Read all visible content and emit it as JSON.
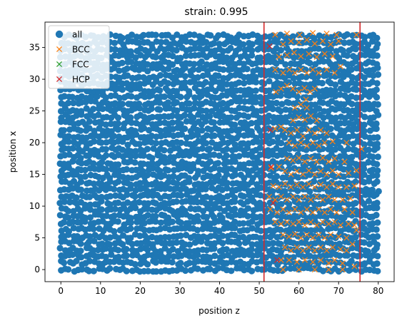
{
  "chart_data": {
    "type": "scatter",
    "title": "strain: 0.995",
    "xlabel": "position z",
    "ylabel": "position x",
    "xlim": [
      -4,
      84
    ],
    "ylim": [
      -1.9,
      39.0
    ],
    "xticks": [
      0,
      10,
      20,
      30,
      40,
      50,
      60,
      70,
      80
    ],
    "yticks": [
      0,
      5,
      10,
      15,
      20,
      25,
      30,
      35
    ],
    "legend_position": "top-left",
    "grid": false,
    "colors": {
      "all": "#1f77b4",
      "BCC": "#ff7f0e",
      "FCC": "#2ca02c",
      "HCP": "#d62728",
      "vline": "#d62728"
    },
    "series": [
      {
        "name": "all",
        "marker": "filled-circle",
        "description": "dense uniform lattice of atoms filling z 0–80, x 0–37"
      },
      {
        "name": "BCC",
        "marker": "x",
        "points": [
          [
            54.2,
            28.0
          ],
          [
            55.5,
            28.5
          ],
          [
            57.0,
            29.0
          ],
          [
            58.5,
            28.5
          ],
          [
            60.0,
            28.0
          ],
          [
            61.4,
            28.6
          ],
          [
            62.8,
            28.0
          ],
          [
            64.0,
            28.5
          ],
          [
            54.0,
            31.5
          ],
          [
            56.0,
            31.0
          ],
          [
            57.6,
            31.5
          ],
          [
            59.0,
            31.0
          ],
          [
            60.5,
            31.5
          ],
          [
            62.0,
            31.0
          ],
          [
            63.5,
            31.5
          ],
          [
            65.0,
            31.0
          ],
          [
            67.0,
            31.5
          ],
          [
            69.0,
            31.0
          ],
          [
            70.5,
            32.0
          ],
          [
            55.0,
            33.5
          ],
          [
            57.0,
            33.8
          ],
          [
            58.8,
            34.2
          ],
          [
            60.5,
            33.6
          ],
          [
            62.5,
            34.0
          ],
          [
            64.5,
            33.5
          ],
          [
            66.5,
            34.0
          ],
          [
            68.5,
            33.6
          ],
          [
            56.0,
            35.5
          ],
          [
            58.0,
            36.0
          ],
          [
            60.0,
            35.8
          ],
          [
            62.0,
            36.2
          ],
          [
            64.0,
            35.6
          ],
          [
            66.0,
            36.0
          ],
          [
            68.0,
            35.5
          ],
          [
            70.0,
            36.0
          ],
          [
            54.0,
            37.0
          ],
          [
            57.0,
            37.2
          ],
          [
            60.2,
            37.0
          ],
          [
            63.5,
            37.3
          ],
          [
            67.0,
            37.2
          ],
          [
            69.5,
            37.0
          ],
          [
            74.5,
            37.0
          ],
          [
            54.0,
            22.2
          ],
          [
            55.5,
            22.5
          ],
          [
            56.5,
            22.0
          ],
          [
            58.0,
            21.5
          ],
          [
            59.5,
            22.0
          ],
          [
            61.0,
            21.0
          ],
          [
            62.5,
            22.0
          ],
          [
            64.0,
            21.5
          ],
          [
            65.5,
            22.0
          ],
          [
            67.0,
            21.5
          ],
          [
            58.5,
            23.5
          ],
          [
            60.0,
            24.0
          ],
          [
            61.5,
            23.6
          ],
          [
            63.0,
            24.2
          ],
          [
            64.5,
            23.5
          ],
          [
            62.0,
            25.5
          ],
          [
            60.5,
            26.0
          ],
          [
            59.0,
            25.5
          ],
          [
            61.8,
            26.8
          ],
          [
            57.5,
            20.0
          ],
          [
            59.0,
            19.5
          ],
          [
            60.5,
            20.0
          ],
          [
            62.0,
            19.5
          ],
          [
            63.5,
            20.0
          ],
          [
            65.0,
            19.5
          ],
          [
            66.5,
            20.0
          ],
          [
            68.5,
            20.2
          ],
          [
            72.0,
            20.0
          ],
          [
            75.8,
            19.0
          ],
          [
            57.0,
            17.5
          ],
          [
            58.5,
            17.2
          ],
          [
            60.0,
            17.6
          ],
          [
            61.5,
            17.0
          ],
          [
            63.0,
            17.5
          ],
          [
            64.5,
            17.0
          ],
          [
            66.0,
            17.6
          ],
          [
            67.5,
            17.0
          ],
          [
            69.0,
            17.5
          ],
          [
            71.5,
            17.0
          ],
          [
            53.0,
            16.0
          ],
          [
            55.0,
            16.2
          ],
          [
            56.5,
            15.5
          ],
          [
            58.0,
            15.0
          ],
          [
            59.5,
            15.5
          ],
          [
            61.0,
            15.0
          ],
          [
            62.5,
            15.6
          ],
          [
            64.0,
            15.0
          ],
          [
            65.5,
            15.5
          ],
          [
            67.0,
            15.0
          ],
          [
            68.5,
            15.6
          ],
          [
            70.0,
            15.0
          ],
          [
            72.5,
            15.2
          ],
          [
            74.5,
            15.6
          ],
          [
            53.5,
            13.2
          ],
          [
            55.0,
            13.0
          ],
          [
            56.5,
            13.5
          ],
          [
            58.0,
            13.0
          ],
          [
            59.5,
            13.4
          ],
          [
            61.0,
            13.0
          ],
          [
            62.5,
            13.5
          ],
          [
            64.0,
            13.0
          ],
          [
            65.5,
            13.4
          ],
          [
            67.0,
            13.0
          ],
          [
            68.5,
            13.5
          ],
          [
            70.0,
            13.0
          ],
          [
            72.0,
            13.0
          ],
          [
            74.0,
            13.2
          ],
          [
            52.5,
            11.5
          ],
          [
            54.0,
            11.0
          ],
          [
            55.5,
            11.5
          ],
          [
            57.0,
            11.0
          ],
          [
            58.5,
            11.5
          ],
          [
            60.0,
            11.0
          ],
          [
            61.5,
            11.5
          ],
          [
            63.0,
            11.0
          ],
          [
            64.5,
            11.5
          ],
          [
            66.0,
            11.0
          ],
          [
            67.5,
            11.5
          ],
          [
            69.0,
            11.0
          ],
          [
            71.0,
            11.0
          ],
          [
            73.0,
            11.2
          ],
          [
            52.8,
            9.5
          ],
          [
            54.5,
            9.0
          ],
          [
            56.0,
            9.5
          ],
          [
            57.5,
            9.0
          ],
          [
            59.0,
            9.5
          ],
          [
            60.5,
            9.0
          ],
          [
            62.0,
            9.5
          ],
          [
            63.5,
            9.0
          ],
          [
            65.0,
            9.5
          ],
          [
            66.5,
            9.0
          ],
          [
            68.0,
            9.5
          ],
          [
            69.5,
            9.0
          ],
          [
            71.5,
            9.5
          ],
          [
            73.5,
            9.0
          ],
          [
            54.0,
            7.5
          ],
          [
            55.5,
            7.2
          ],
          [
            57.0,
            7.5
          ],
          [
            58.5,
            7.2
          ],
          [
            60.0,
            7.5
          ],
          [
            61.5,
            7.0
          ],
          [
            63.0,
            7.5
          ],
          [
            64.5,
            7.0
          ],
          [
            66.0,
            7.5
          ],
          [
            67.5,
            7.2
          ],
          [
            69.0,
            7.5
          ],
          [
            70.5,
            7.0
          ],
          [
            72.5,
            7.2
          ],
          [
            74.0,
            7.0
          ],
          [
            56.0,
            5.5
          ],
          [
            57.5,
            5.2
          ],
          [
            59.0,
            5.6
          ],
          [
            60.5,
            5.0
          ],
          [
            62.0,
            5.5
          ],
          [
            63.5,
            5.0
          ],
          [
            65.0,
            5.5
          ],
          [
            66.5,
            5.0
          ],
          [
            68.0,
            5.5
          ],
          [
            70.0,
            5.2
          ],
          [
            72.0,
            5.0
          ],
          [
            74.5,
            6.2
          ],
          [
            56.5,
            3.5
          ],
          [
            58.0,
            3.0
          ],
          [
            59.5,
            3.5
          ],
          [
            61.0,
            3.0
          ],
          [
            62.5,
            3.5
          ],
          [
            64.0,
            3.0
          ],
          [
            65.5,
            3.5
          ],
          [
            67.0,
            3.0
          ],
          [
            68.5,
            3.5
          ],
          [
            70.5,
            3.2
          ],
          [
            72.0,
            3.0
          ],
          [
            73.5,
            4.0
          ],
          [
            55.5,
            1.5
          ],
          [
            57.5,
            1.5
          ],
          [
            59.5,
            1.2
          ],
          [
            61.5,
            1.5
          ],
          [
            63.5,
            1.2
          ],
          [
            65.5,
            1.5
          ],
          [
            67.5,
            1.0
          ],
          [
            69.0,
            1.5
          ],
          [
            71.0,
            1.0
          ],
          [
            56.0,
            0.0
          ],
          [
            60.0,
            0.0
          ],
          [
            64.0,
            0.0
          ],
          [
            67.5,
            0.0
          ],
          [
            71.0,
            0.0
          ],
          [
            74.0,
            0.5
          ]
        ]
      },
      {
        "name": "FCC",
        "marker": "x",
        "points": []
      },
      {
        "name": "HCP",
        "marker": "x",
        "points": [
          [
            52.6,
            35.2
          ],
          [
            52.8,
            22.0
          ],
          [
            54.5,
            1.5
          ],
          [
            53.0,
            16.2
          ],
          [
            53.5,
            10.5
          ]
        ]
      }
    ],
    "vlines": [
      51.2,
      75.4
    ]
  }
}
